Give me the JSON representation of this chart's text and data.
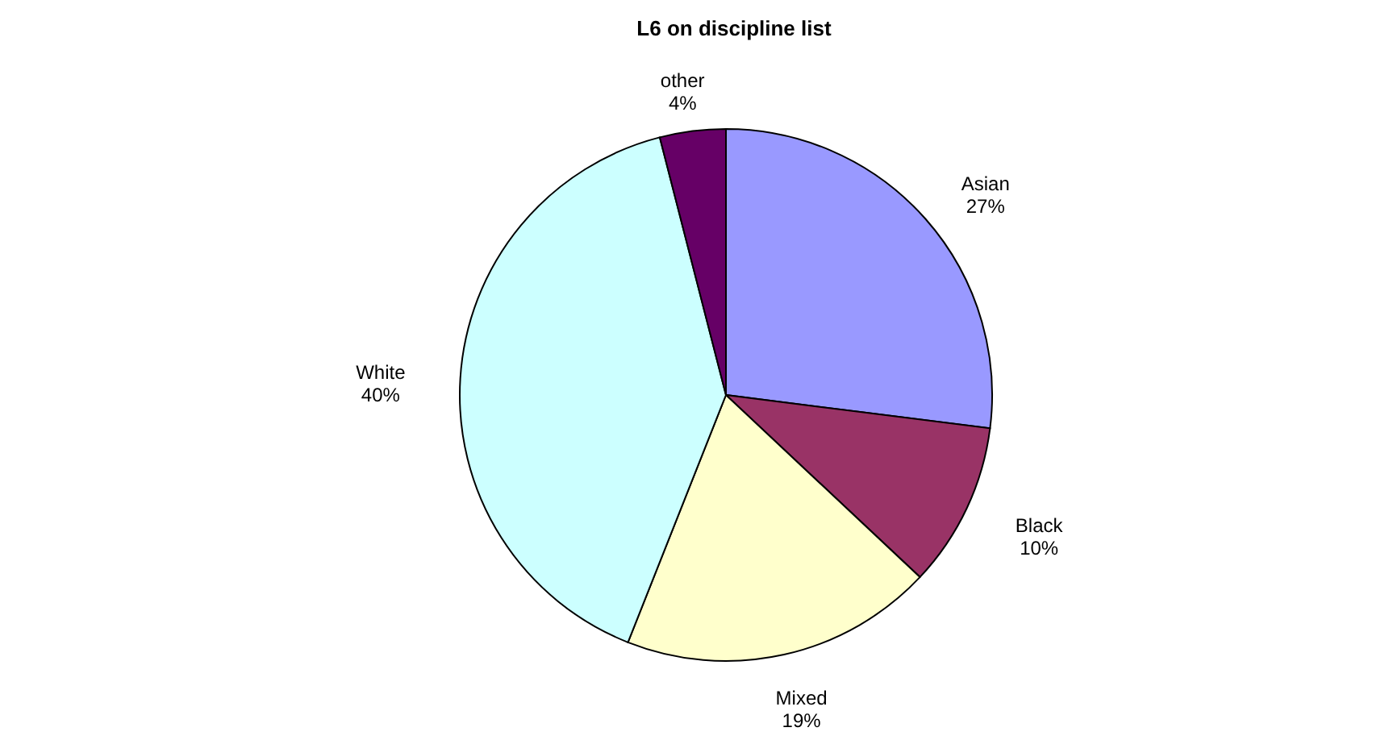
{
  "chart_data": {
    "type": "pie",
    "title": "L6 on discipline list",
    "categories": [
      "Asian",
      "Black",
      "Mixed",
      "White",
      "other"
    ],
    "values": [
      27,
      10,
      19,
      40,
      4
    ],
    "value_labels": [
      "27%",
      "10%",
      "19%",
      "40%",
      "4%"
    ],
    "colors": [
      "#9999ff",
      "#993366",
      "#ffffcc",
      "#ccffff",
      "#660066"
    ],
    "legend": false
  }
}
